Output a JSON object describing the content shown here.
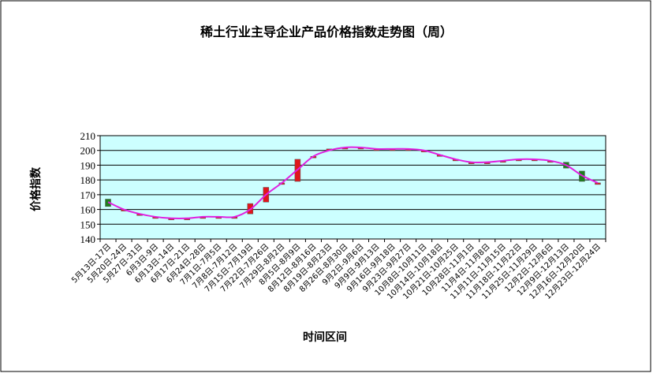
{
  "chart_data": {
    "type": "candlestick",
    "title": "稀土行业主导企业产品价格指数走势图（周）",
    "y_label": "价格指数",
    "x_label": "时间区间",
    "categories": [
      "5月13日-17日",
      "5月20日-24日",
      "5月27日-31日",
      "6月3日-9日",
      "6月13日-14日",
      "6月17日-21日",
      "6月24日-28日",
      "7月1日-7月5日",
      "7月8日-7月12日",
      "7月15日-7月19日",
      "7月22日-7月26日",
      "7月29日-8月2日",
      "8月5日-8月9日",
      "8月12日-8月16日",
      "8月19日-8月23日",
      "8月26日-8月30日",
      "9月2日-9月6日",
      "9月9日-9月13日",
      "9月16日-9月18日",
      "9月23日-9月27日",
      "10月8日-10月11日",
      "10月14日-10月18日",
      "10月21日-10月25日",
      "10月28日-11月1日",
      "11月4日-11月8日",
      "11月11日-11月15日",
      "11月18日-11月22日",
      "11月25日-11月29日",
      "12月2日-12月6日",
      "12月9日-12月13日",
      "12月16日-12月20日",
      "12月23日-12月24日"
    ],
    "open": [
      167,
      160,
      157,
      155,
      154,
      154,
      155,
      155,
      155,
      157,
      165,
      177,
      179,
      196,
      200,
      202,
      202,
      201,
      201,
      201,
      200,
      197,
      194,
      192,
      192,
      193,
      194,
      194,
      193,
      192,
      186,
      178
    ],
    "close": [
      162,
      160,
      157,
      155,
      154,
      154,
      155,
      155,
      155,
      164,
      175,
      178,
      194,
      196,
      201,
      202,
      202,
      201,
      201,
      201,
      200,
      197,
      194,
      192,
      192,
      193,
      194,
      194,
      193,
      188,
      179,
      178
    ],
    "up_color": "#e0161c",
    "down_color": "#1e7d1e",
    "line": {
      "color": "#e020e0",
      "values": [
        165,
        160,
        157,
        155,
        154,
        154,
        155,
        155,
        155,
        160,
        170,
        178,
        187,
        196,
        200,
        202,
        202,
        201,
        201,
        201,
        200,
        197,
        194,
        192,
        192,
        193,
        194,
        194,
        193,
        190,
        183,
        178
      ]
    },
    "ylim": [
      140,
      210
    ],
    "yticks": [
      140,
      150,
      160,
      170,
      180,
      190,
      200,
      210
    ],
    "grid": true,
    "background": "#ccffff"
  }
}
